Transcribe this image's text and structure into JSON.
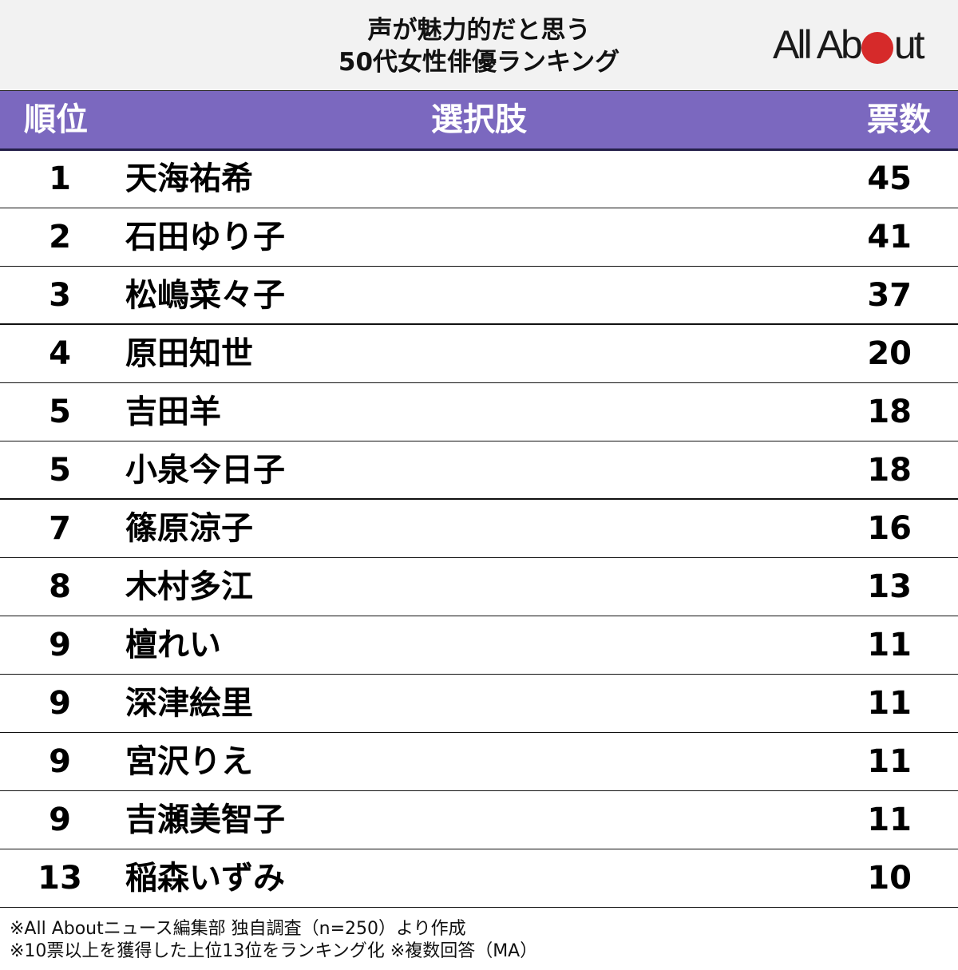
{
  "title": {
    "line1": "声が魅力的だと思う",
    "line2": "50代女性俳優ランキング"
  },
  "logo": {
    "text_before": "All Ab",
    "text_after": "ut",
    "dot_color": "#d62a2a"
  },
  "table": {
    "header": {
      "rank": "順位",
      "name": "選択肢",
      "votes": "票数",
      "background": "#7b68bf"
    },
    "rows": [
      {
        "rank": "1",
        "name": "天海祐希",
        "votes": "45"
      },
      {
        "rank": "2",
        "name": "石田ゆり子",
        "votes": "41"
      },
      {
        "rank": "3",
        "name": "松嶋菜々子",
        "votes": "37"
      },
      {
        "rank": "4",
        "name": "原田知世",
        "votes": "20"
      },
      {
        "rank": "5",
        "name": "吉田羊",
        "votes": "18"
      },
      {
        "rank": "5",
        "name": "小泉今日子",
        "votes": "18"
      },
      {
        "rank": "7",
        "name": "篠原涼子",
        "votes": "16"
      },
      {
        "rank": "8",
        "name": "木村多江",
        "votes": "13"
      },
      {
        "rank": "9",
        "name": "檀れい",
        "votes": "11"
      },
      {
        "rank": "9",
        "name": "深津絵里",
        "votes": "11"
      },
      {
        "rank": "9",
        "name": "宮沢りえ",
        "votes": "11"
      },
      {
        "rank": "9",
        "name": "吉瀬美智子",
        "votes": "11"
      },
      {
        "rank": "13",
        "name": "稲森いずみ",
        "votes": "10"
      }
    ]
  },
  "footnotes": {
    "line1": "※All Aboutニュース編集部 独自調査（n=250）より作成",
    "line2": "※10票以上を獲得した上位13位をランキング化 ※複数回答（MA）"
  }
}
